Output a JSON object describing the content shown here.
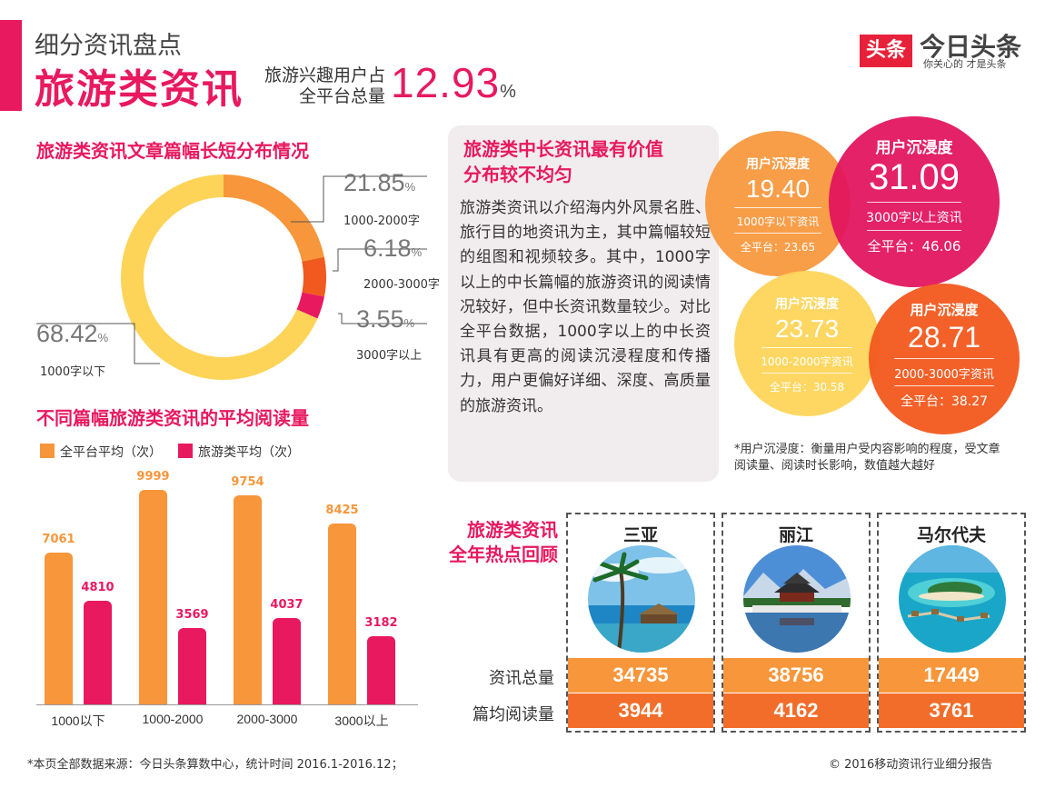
{
  "header": {
    "subtitle": "细分资讯盘点",
    "title": "旅游类资讯",
    "share_label_line1": "旅游兴趣用户占",
    "share_label_line2": "全平台总量",
    "share_value": "12.93",
    "share_unit": "%"
  },
  "logo": {
    "box_text": "头条",
    "name": "今日头条",
    "slogan": "你关心的 才是头条"
  },
  "colors": {
    "brand_pink": "#e8195f",
    "orange": "#f7963a",
    "yellow": "#fdd458",
    "dark_orange": "#f2591e",
    "platform_bar": "#f7963a",
    "travel_bar": "#e8195f"
  },
  "donut": {
    "title": "旅游类资讯文章篇幅长短分布情况"
  },
  "bars": {
    "title": "不同篇幅旅游类资讯的平均阅读量"
  },
  "info_box": {
    "title_line1": "旅游类中长资讯最有价值",
    "title_line2": "分布较不均匀",
    "body": "旅游类资讯以介绍海内外风景名胜、旅行目的地资讯为主，其中篇幅较短的组图和视频较多。其中，1000字以上的中长篇幅的旅游资讯的阅读情况较好，但中长资讯数量较少。对比全平台数据，1000字以上的中长资讯具有更高的阅读沉浸程度和传播力，用户更偏好详细、深度、高质量的旅游资讯。"
  },
  "immersion": {
    "bubbles": [
      {
        "label": "用户沉浸度",
        "value": "19.40",
        "category": "1000字以下资讯",
        "platform": "全平台：23.65",
        "color": "#f7963a"
      },
      {
        "label": "用户沉浸度",
        "value": "31.09",
        "category": "3000字以上资讯",
        "platform": "全平台：46.06",
        "color": "#e2145d"
      },
      {
        "label": "用户沉浸度",
        "value": "23.73",
        "category": "1000-2000字资讯",
        "platform": "全平台：30.58",
        "color": "#fdd458"
      },
      {
        "label": "用户沉浸度",
        "value": "28.71",
        "category": "2000-3000字资讯",
        "platform": "全平台：38.27",
        "color": "#f2591e"
      }
    ],
    "note": "*用户沉浸度：衡量用户受内容影响的程度，受文章阅读量、阅读时长影响，数值越大越好"
  },
  "hotspots": {
    "title_line1": "旅游类资讯",
    "title_line2": "全年热点回顾",
    "row_label_total": "资讯总量",
    "row_label_avg": "篇均阅读量",
    "destinations": [
      {
        "name": "三亚",
        "total": "34735",
        "avg_reads": "3944"
      },
      {
        "name": "丽江",
        "total": "38756",
        "avg_reads": "4162"
      },
      {
        "name": "马尔代夫",
        "total": "17449",
        "avg_reads": "3761"
      }
    ]
  },
  "chart_data": [
    {
      "type": "pie",
      "title": "旅游类资讯文章篇幅长短分布情况",
      "unit": "%",
      "categories": [
        "1000字以下",
        "1000-2000字",
        "2000-3000字",
        "3000字以上"
      ],
      "values": [
        68.42,
        21.85,
        6.18,
        3.55
      ],
      "value_labels": [
        "68.42",
        "21.85",
        "6.18",
        "3.55"
      ],
      "colors": [
        "#fdd458",
        "#f7963a",
        "#f2591e",
        "#e8195f"
      ],
      "donut": true
    },
    {
      "type": "bar",
      "title": "不同篇幅旅游类资讯的平均阅读量",
      "categories": [
        "1000以下",
        "1000-2000",
        "2000-3000",
        "3000以上"
      ],
      "series": [
        {
          "name": "全平台平均（次）",
          "values": [
            7061,
            9999,
            9754,
            8425
          ],
          "color": "#f7963a"
        },
        {
          "name": "旅游类平均（次）",
          "values": [
            4810,
            3569,
            4037,
            3182
          ],
          "color": "#e8195f"
        }
      ],
      "ylim": [
        0,
        10000
      ],
      "grid": false,
      "legend_position": "top-left"
    }
  ],
  "footer": {
    "source": "*本页全部数据来源：今日头条算数中心，统计时间 2016.1-2016.12；",
    "copyright": "© 2016移动资讯行业细分报告"
  }
}
